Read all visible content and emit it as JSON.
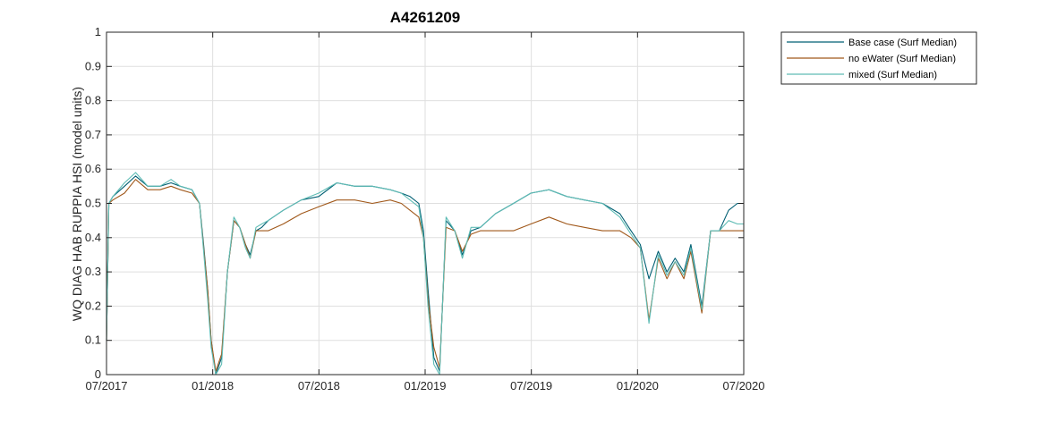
{
  "chart_data": {
    "type": "line",
    "title": "A4261209",
    "xlabel": "",
    "ylabel": "WQ DIAG HAB RUPPIA HSI (model units)",
    "xlim": [
      "2017-07-01",
      "2020-07-01"
    ],
    "ylim": [
      0,
      1
    ],
    "grid": true,
    "legend_position": "outside-top-right",
    "x_tick_labels": [
      "07/2017",
      "01/2018",
      "07/2018",
      "01/2019",
      "07/2019",
      "01/2020",
      "07/2020"
    ],
    "y_tick_labels": [
      "0",
      "0.1",
      "0.2",
      "0.3",
      "0.4",
      "0.5",
      "0.6",
      "0.7",
      "0.8",
      "0.9",
      "1"
    ],
    "y_ticks": [
      0,
      0.1,
      0.2,
      0.3,
      0.4,
      0.5,
      0.6,
      0.7,
      0.8,
      0.9,
      1
    ],
    "series": [
      {
        "name": "Base case (Surf Median)",
        "color": "#005f73",
        "x": [
          "2017-07-01",
          "2017-07-05",
          "2017-07-12",
          "2017-08-01",
          "2017-08-20",
          "2017-09-10",
          "2017-10-01",
          "2017-10-20",
          "2017-11-05",
          "2017-11-25",
          "2017-12-08",
          "2017-12-15",
          "2017-12-22",
          "2017-12-28",
          "2018-01-05",
          "2018-01-15",
          "2018-01-25",
          "2018-02-05",
          "2018-02-15",
          "2018-02-25",
          "2018-03-05",
          "2018-03-15",
          "2018-03-25",
          "2018-04-05",
          "2018-05-01",
          "2018-06-01",
          "2018-07-01",
          "2018-08-01",
          "2018-09-01",
          "2018-10-01",
          "2018-11-01",
          "2018-11-20",
          "2018-12-05",
          "2018-12-20",
          "2018-12-28",
          "2019-01-05",
          "2019-01-15",
          "2019-01-25",
          "2019-02-05",
          "2019-02-20",
          "2019-03-05",
          "2019-03-20",
          "2019-04-05",
          "2019-05-01",
          "2019-06-01",
          "2019-07-01",
          "2019-08-01",
          "2019-09-01",
          "2019-10-01",
          "2019-11-01",
          "2019-12-01",
          "2019-12-20",
          "2020-01-05",
          "2020-01-20",
          "2020-02-05",
          "2020-02-20",
          "2020-03-05",
          "2020-03-20",
          "2020-04-01",
          "2020-04-20",
          "2020-05-05",
          "2020-05-20",
          "2020-06-05",
          "2020-06-20",
          "2020-07-01"
        ],
        "values": [
          0.1,
          0.5,
          0.52,
          0.55,
          0.58,
          0.55,
          0.55,
          0.56,
          0.55,
          0.54,
          0.5,
          0.38,
          0.25,
          0.1,
          0.0,
          0.05,
          0.3,
          0.45,
          0.43,
          0.38,
          0.35,
          0.42,
          0.43,
          0.45,
          0.48,
          0.51,
          0.52,
          0.56,
          0.55,
          0.55,
          0.54,
          0.53,
          0.52,
          0.5,
          0.42,
          0.25,
          0.05,
          0.01,
          0.45,
          0.42,
          0.35,
          0.42,
          0.43,
          0.47,
          0.5,
          0.53,
          0.54,
          0.52,
          0.51,
          0.5,
          0.47,
          0.42,
          0.38,
          0.28,
          0.36,
          0.3,
          0.34,
          0.3,
          0.38,
          0.2,
          0.42,
          0.42,
          0.48,
          0.5,
          0.5
        ]
      },
      {
        "name": "no eWater (Surf Median)",
        "color": "#a0581a",
        "x": [
          "2017-07-01",
          "2017-07-05",
          "2017-07-12",
          "2017-08-01",
          "2017-08-20",
          "2017-09-10",
          "2017-10-01",
          "2017-10-20",
          "2017-11-05",
          "2017-11-25",
          "2017-12-08",
          "2017-12-15",
          "2017-12-22",
          "2017-12-28",
          "2018-01-05",
          "2018-01-15",
          "2018-01-25",
          "2018-02-05",
          "2018-02-15",
          "2018-02-25",
          "2018-03-05",
          "2018-03-15",
          "2018-03-25",
          "2018-04-05",
          "2018-05-01",
          "2018-06-01",
          "2018-07-01",
          "2018-08-01",
          "2018-09-01",
          "2018-10-01",
          "2018-11-01",
          "2018-11-20",
          "2018-12-05",
          "2018-12-20",
          "2018-12-28",
          "2019-01-05",
          "2019-01-15",
          "2019-01-25",
          "2019-02-05",
          "2019-02-20",
          "2019-03-05",
          "2019-03-20",
          "2019-04-05",
          "2019-05-01",
          "2019-06-01",
          "2019-07-01",
          "2019-08-01",
          "2019-09-01",
          "2019-10-01",
          "2019-11-01",
          "2019-12-01",
          "2019-12-20",
          "2020-01-05",
          "2020-01-20",
          "2020-02-05",
          "2020-02-20",
          "2020-03-05",
          "2020-03-20",
          "2020-04-01",
          "2020-04-20",
          "2020-05-05",
          "2020-05-20",
          "2020-06-05",
          "2020-06-20",
          "2020-07-01"
        ],
        "values": [
          0.1,
          0.5,
          0.51,
          0.53,
          0.57,
          0.54,
          0.54,
          0.55,
          0.54,
          0.53,
          0.5,
          0.37,
          0.25,
          0.1,
          0.01,
          0.06,
          0.3,
          0.45,
          0.43,
          0.38,
          0.34,
          0.42,
          0.42,
          0.42,
          0.44,
          0.47,
          0.49,
          0.51,
          0.51,
          0.5,
          0.51,
          0.5,
          0.48,
          0.46,
          0.4,
          0.22,
          0.08,
          0.02,
          0.43,
          0.42,
          0.36,
          0.41,
          0.42,
          0.42,
          0.42,
          0.44,
          0.46,
          0.44,
          0.43,
          0.42,
          0.42,
          0.4,
          0.37,
          0.16,
          0.34,
          0.28,
          0.33,
          0.28,
          0.36,
          0.18,
          0.42,
          0.42,
          0.42,
          0.42,
          0.42
        ]
      },
      {
        "name": "mixed (Surf Median)",
        "color": "#5fbcb5",
        "x": [
          "2017-07-01",
          "2017-07-05",
          "2017-07-12",
          "2017-08-01",
          "2017-08-20",
          "2017-09-10",
          "2017-10-01",
          "2017-10-20",
          "2017-11-05",
          "2017-11-25",
          "2017-12-08",
          "2017-12-15",
          "2017-12-22",
          "2017-12-28",
          "2018-01-05",
          "2018-01-15",
          "2018-01-25",
          "2018-02-05",
          "2018-02-15",
          "2018-02-25",
          "2018-03-05",
          "2018-03-15",
          "2018-03-25",
          "2018-04-05",
          "2018-05-01",
          "2018-06-01",
          "2018-07-01",
          "2018-08-01",
          "2018-09-01",
          "2018-10-01",
          "2018-11-01",
          "2018-11-20",
          "2018-12-05",
          "2018-12-20",
          "2018-12-28",
          "2019-01-05",
          "2019-01-15",
          "2019-01-25",
          "2019-02-05",
          "2019-02-20",
          "2019-03-05",
          "2019-03-20",
          "2019-04-05",
          "2019-05-01",
          "2019-06-01",
          "2019-07-01",
          "2019-08-01",
          "2019-09-01",
          "2019-10-01",
          "2019-11-01",
          "2019-12-01",
          "2019-12-20",
          "2020-01-05",
          "2020-01-20",
          "2020-02-05",
          "2020-02-20",
          "2020-03-05",
          "2020-03-20",
          "2020-04-01",
          "2020-04-20",
          "2020-05-05",
          "2020-05-20",
          "2020-06-05",
          "2020-06-20",
          "2020-07-01"
        ],
        "values": [
          0.1,
          0.5,
          0.52,
          0.56,
          0.59,
          0.55,
          0.55,
          0.57,
          0.55,
          0.54,
          0.5,
          0.36,
          0.22,
          0.08,
          0.0,
          0.03,
          0.3,
          0.46,
          0.43,
          0.37,
          0.34,
          0.43,
          0.44,
          0.45,
          0.48,
          0.51,
          0.53,
          0.56,
          0.55,
          0.55,
          0.54,
          0.53,
          0.51,
          0.49,
          0.4,
          0.2,
          0.03,
          0.0,
          0.46,
          0.42,
          0.34,
          0.43,
          0.43,
          0.47,
          0.5,
          0.53,
          0.54,
          0.52,
          0.51,
          0.5,
          0.46,
          0.41,
          0.37,
          0.15,
          0.35,
          0.29,
          0.33,
          0.29,
          0.37,
          0.19,
          0.42,
          0.42,
          0.45,
          0.44,
          0.44
        ]
      }
    ]
  }
}
